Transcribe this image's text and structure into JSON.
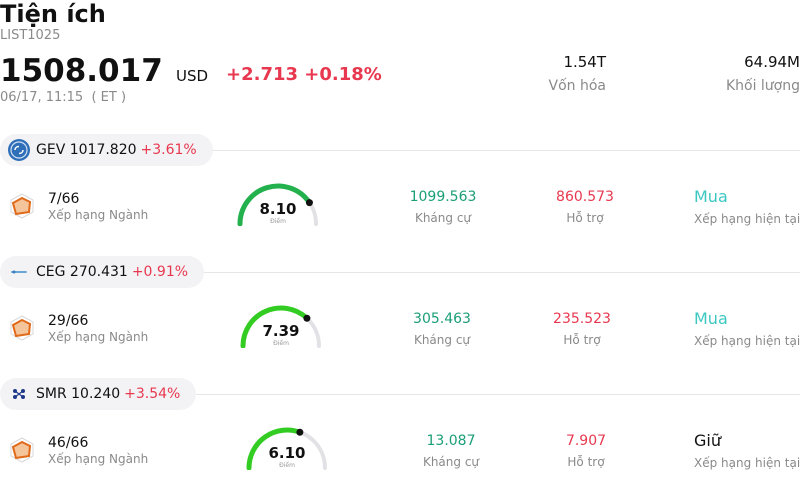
{
  "header": {
    "title": "Tiện ích",
    "code": "LIST1025",
    "price": "1508.017",
    "currency": "USD",
    "change": "+2.713 +0.18%",
    "timestamp": "06/17, 11:15  ( ET )",
    "market_cap": {
      "value": "1.54T",
      "label": "Vốn hóa"
    },
    "volume": {
      "value": "64.94M",
      "label": "Khối lượng"
    }
  },
  "stocks": [
    {
      "ticker": "GEV 1017.820",
      "change": "+3.61%",
      "logo_icon": "ge-vernova-logo-icon",
      "rank": "7/66",
      "rank_label": "Xếp hạng Ngành",
      "score": 8.1,
      "score_text": "8.10",
      "score_caption": "Điểm",
      "resistance": "1099.563",
      "resistance_label": "Kháng cự",
      "support": "860.573",
      "support_label": "Hỗ trợ",
      "rating": "Mua",
      "rating_label": "Xếp hạng hiện tại",
      "rating_color": "#3cc8c0",
      "gauge_color": "#22b14c"
    },
    {
      "ticker": "CEG 270.431",
      "change": "+0.91%",
      "logo_icon": "constellation-logo-icon",
      "rank": "29/66",
      "rank_label": "Xếp hạng Ngành",
      "score": 7.39,
      "score_text": "7.39",
      "score_caption": "Điểm",
      "resistance": "305.463",
      "resistance_label": "Kháng cự",
      "support": "235.523",
      "support_label": "Hỗ trợ",
      "rating": "Mua",
      "rating_label": "Xếp hạng hiện tại",
      "rating_color": "#3cc8c0",
      "gauge_color": "#33cc22"
    },
    {
      "ticker": "SMR 10.240",
      "change": "+3.54%",
      "logo_icon": "nuscale-logo-icon",
      "rank": "46/66",
      "rank_label": "Xếp hạng Ngành",
      "score": 6.1,
      "score_text": "6.10",
      "score_caption": "Điểm",
      "resistance": "13.087",
      "resistance_label": "Kháng cự",
      "support": "7.907",
      "support_label": "Hỗ trợ",
      "rating": "Giữ",
      "rating_label": "Xếp hạng hiện tại",
      "rating_color": "#111111",
      "gauge_color": "#33cc22"
    }
  ],
  "colors": {
    "up": "#e8384f",
    "resistance": "#1b9e77",
    "gauge_track": "#e2e2e6"
  }
}
